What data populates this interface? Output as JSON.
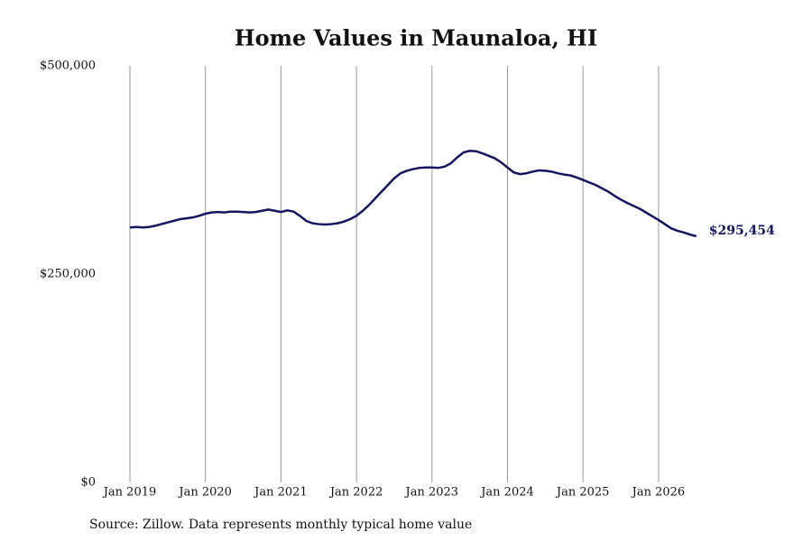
{
  "chart_data": {
    "type": "line",
    "title": "Home Values in Maunaloa, HI",
    "source": "Source: Zillow. Data represents monthly typical home value",
    "categories": [
      "Jan 2019",
      null,
      null,
      null,
      null,
      null,
      null,
      null,
      null,
      null,
      null,
      null,
      "Jan 2020",
      null,
      null,
      null,
      null,
      null,
      null,
      null,
      null,
      null,
      null,
      null,
      "Jan 2021",
      null,
      null,
      null,
      null,
      null,
      null,
      null,
      null,
      null,
      null,
      null,
      "Jan 2022",
      null,
      null,
      null,
      null,
      null,
      null,
      null,
      null,
      null,
      null,
      null,
      "Jan 2023",
      null,
      null,
      null,
      null,
      null,
      null,
      null,
      null,
      null,
      null,
      null,
      "Jan 2024",
      null,
      null,
      null,
      null,
      null,
      null,
      null,
      null,
      null,
      null,
      null,
      "Jan 2025",
      null,
      null,
      null,
      null,
      null,
      null,
      null,
      null,
      null,
      null,
      null,
      "Jan 2026",
      null,
      null,
      null,
      null,
      null,
      null
    ],
    "series": [
      {
        "color": "#141560",
        "values": [
          306000,
          306500,
          306000,
          306500,
          308000,
          310000,
          312000,
          314000,
          316000,
          317000,
          318000,
          320000,
          322500,
          324000,
          324500,
          324000,
          325000,
          325000,
          324500,
          324000,
          324500,
          326000,
          327500,
          326000,
          324500,
          326500,
          325000,
          320000,
          314000,
          311000,
          310000,
          309500,
          310000,
          311000,
          313000,
          316000,
          320000,
          326000,
          333000,
          341000,
          349000,
          357000,
          365000,
          371000,
          374000,
          376000,
          377500,
          378000,
          378000,
          377500,
          379000,
          383000,
          390000,
          396000,
          398000,
          397500,
          395000,
          392000,
          389000,
          384000,
          378000,
          372000,
          370000,
          371000,
          373000,
          374500,
          374000,
          373000,
          371000,
          369500,
          368500,
          366000,
          363000,
          360000,
          357000,
          353000,
          349000,
          344000,
          339500,
          335500,
          332000,
          328500,
          324000,
          319500,
          315000,
          310000,
          305000,
          302000,
          300000,
          297500,
          295454
        ],
        "value_labels": [
          null,
          null,
          null,
          null,
          null,
          null,
          null,
          null,
          null,
          null,
          null,
          null,
          null,
          null,
          null,
          null,
          null,
          null,
          null,
          null,
          null,
          null,
          null,
          null,
          null,
          null,
          null,
          null,
          null,
          null,
          null,
          null,
          null,
          null,
          null,
          null,
          null,
          null,
          null,
          null,
          null,
          null,
          null,
          null,
          null,
          null,
          null,
          null,
          null,
          null,
          null,
          null,
          null,
          null,
          null,
          null,
          null,
          null,
          null,
          null,
          null,
          null,
          null,
          null,
          null,
          null,
          null,
          null,
          null,
          null,
          null,
          null,
          null,
          null,
          null,
          null,
          null,
          null,
          null,
          null,
          null,
          null,
          null,
          null,
          null,
          null,
          null,
          null,
          null,
          null,
          "$295,454"
        ]
      }
    ],
    "ylim": [
      0,
      500000
    ],
    "yticks": [
      {
        "value": 0,
        "label": "$0"
      },
      {
        "value": 250000,
        "label": "$250,000"
      },
      {
        "value": 500000,
        "label": "$500,000"
      }
    ],
    "grid": "x"
  }
}
